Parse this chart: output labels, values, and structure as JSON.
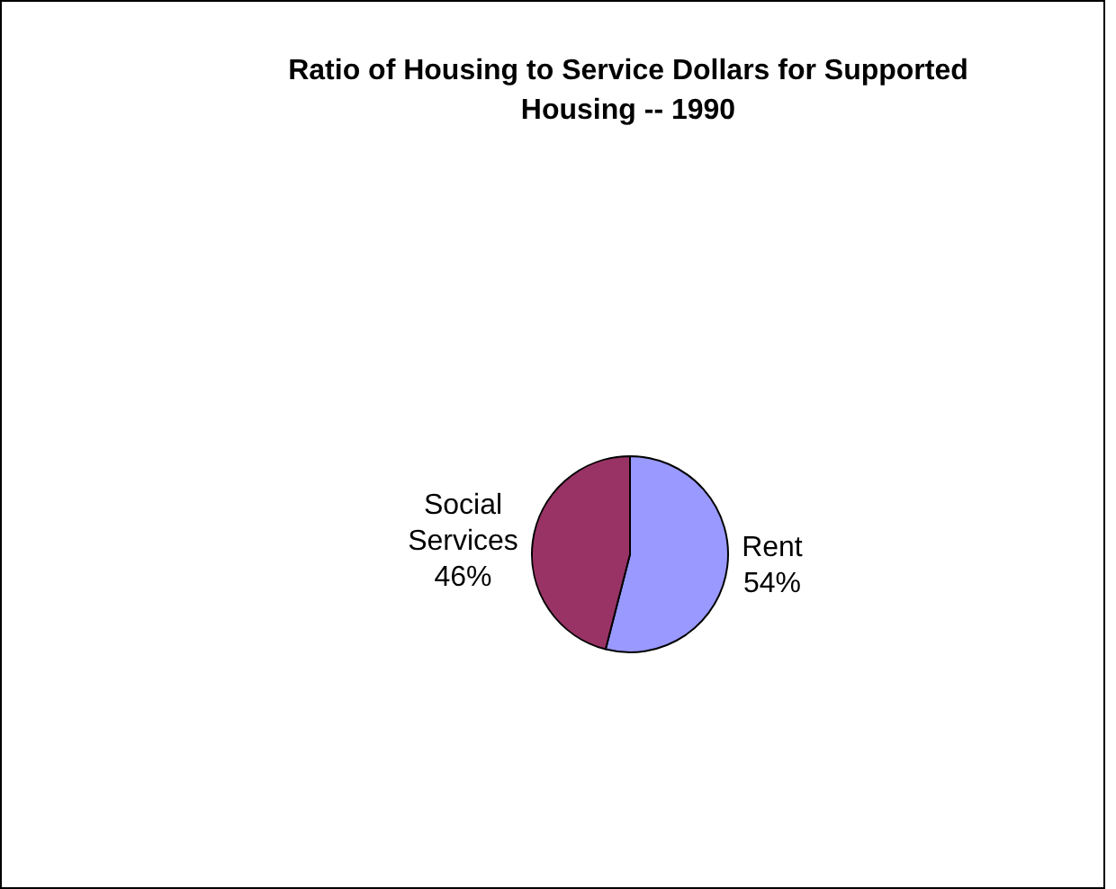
{
  "chart_data": {
    "type": "pie",
    "title": "Ratio of Housing to Service Dollars for Supported Housing -- 1990",
    "categories": [
      "Rent",
      "Social Services"
    ],
    "values": [
      54,
      46
    ],
    "colors": [
      "#9999ff",
      "#993366"
    ],
    "value_labels": [
      "54%",
      "46%"
    ],
    "legend": false
  }
}
